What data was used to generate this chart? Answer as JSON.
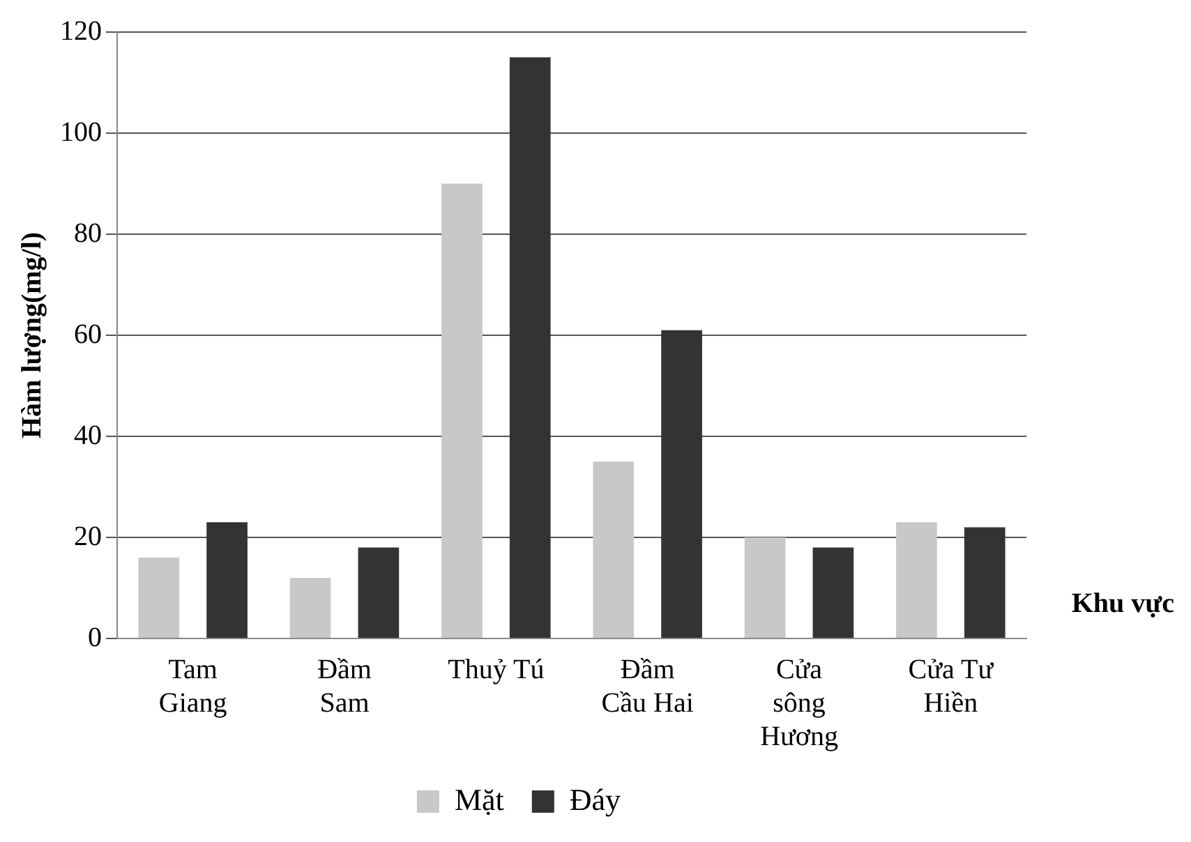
{
  "chart_data": {
    "type": "bar",
    "xlabel": "Khu vực",
    "ylabel": "Hàm lượng(mg/l)",
    "categories": [
      "Tam Giang",
      "Đầm Sam",
      "Thuỷ Tú",
      "Đầm Cầu Hai",
      "Cửa sông Hương",
      "Cửa Tư Hiền"
    ],
    "series": [
      {
        "name": "Mặt",
        "color": "#c8c8c8",
        "values": [
          16,
          12,
          90,
          35,
          20,
          23
        ]
      },
      {
        "name": "Đáy",
        "color": "#333333",
        "values": [
          23,
          18,
          115,
          61,
          18,
          22
        ]
      }
    ],
    "ylim": [
      0,
      120
    ],
    "yticks": [
      0,
      20,
      40,
      60,
      80,
      100,
      120
    ],
    "grid": "y",
    "legend": "bottom"
  }
}
